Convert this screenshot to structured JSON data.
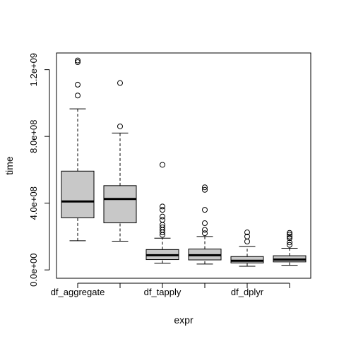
{
  "chart_data": {
    "type": "boxplot",
    "title": "",
    "xlabel": "expr",
    "ylabel": "time",
    "ylim": [
      -50000000,
      1300000000
    ],
    "yticks": [
      0,
      400000000,
      800000000,
      1200000000
    ],
    "ytick_labels": [
      "0.0e+00",
      "4.0e+08",
      "8.0e+08",
      "1.2e+09"
    ],
    "categories": [
      "df_aggregate",
      "",
      "df_tapply",
      "",
      "df_dplyr",
      ""
    ],
    "series": [
      {
        "whisker_low": 175000000,
        "q1": 312000000,
        "median": 410000000,
        "q3": 592000000,
        "whisker_high": 965000000,
        "outliers": [
          1045000000,
          1110000000,
          1245000000,
          1255000000
        ]
      },
      {
        "whisker_low": 172000000,
        "q1": 282000000,
        "median": 425000000,
        "q3": 505000000,
        "whisker_high": 820000000,
        "outliers": [
          860000000,
          1120000000
        ]
      },
      {
        "whisker_low": 40000000,
        "q1": 62000000,
        "median": 88000000,
        "q3": 122000000,
        "whisker_high": 190000000,
        "outliers": [
          210000000,
          225000000,
          240000000,
          255000000,
          270000000,
          300000000,
          320000000,
          360000000,
          380000000,
          630000000
        ]
      },
      {
        "whisker_low": 35000000,
        "q1": 60000000,
        "median": 88000000,
        "q3": 125000000,
        "whisker_high": 200000000,
        "outliers": [
          220000000,
          240000000,
          280000000,
          360000000,
          480000000,
          495000000
        ]
      },
      {
        "whisker_low": 22000000,
        "q1": 42000000,
        "median": 55000000,
        "q3": 80000000,
        "whisker_high": 140000000,
        "outliers": [
          170000000,
          200000000,
          225000000
        ]
      },
      {
        "whisker_low": 28000000,
        "q1": 48000000,
        "median": 62000000,
        "q3": 85000000,
        "whisker_high": 130000000,
        "outliers": [
          150000000,
          165000000,
          190000000,
          200000000,
          212000000,
          222000000
        ]
      }
    ],
    "colors": {
      "box_fill": "#c8c8c8",
      "stroke": "#000000"
    },
    "grid": false,
    "legend": "none"
  }
}
